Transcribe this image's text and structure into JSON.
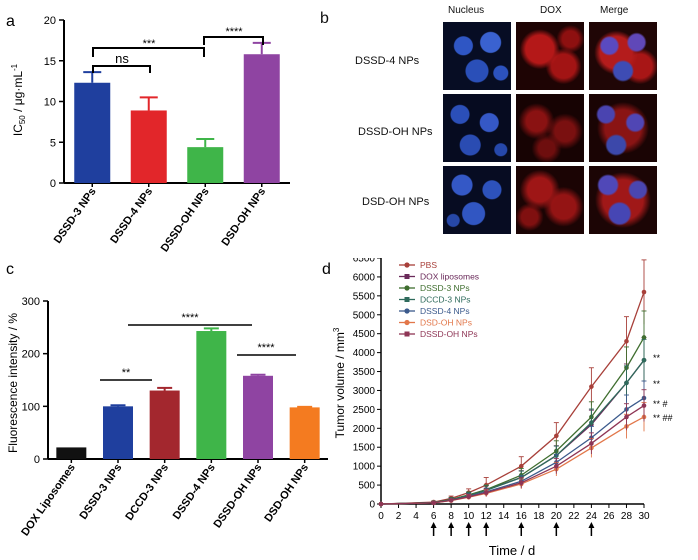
{
  "panels": {
    "a": {
      "letter": "a",
      "ylabel": "IC50 / μg·mL-1",
      "ylabel_main": "IC",
      "ylabel_sub": "50",
      "ylabel_rest": " / μg·mL",
      "ylabel_sup": "-1",
      "sig": [
        {
          "text": "ns"
        },
        {
          "text": "***"
        },
        {
          "text": "****"
        }
      ]
    },
    "b": {
      "letter": "b",
      "columns": [
        "Nucleus",
        "DOX",
        "Merge"
      ],
      "rows": [
        "DSSD-4 NPs",
        "DSSD-OH NPs",
        "DSD-OH NPs"
      ]
    },
    "c": {
      "letter": "c",
      "ylabel": "Fluorescence intensity / %",
      "sig": [
        {
          "text": "****"
        },
        {
          "text": "**"
        },
        {
          "text": "****"
        }
      ]
    },
    "d": {
      "letter": "d",
      "ylabel": "Tumor volume / mm3",
      "ylabel_main": "Tumor volume / mm",
      "ylabel_sup": "3",
      "xlabel": "Time / d",
      "right_marks": [
        {
          "text": "**"
        },
        {
          "text": "**"
        },
        {
          "text": "**  #"
        },
        {
          "text": "**  ##"
        }
      ]
    }
  },
  "colors": {
    "blue": "#1f3f9e",
    "red": "#e2262a",
    "green": "#3fb549",
    "purple": "#8f44a2",
    "darkred": "#a3272e",
    "orange": "#f47b20",
    "black": "#111111"
  },
  "chart_data": [
    {
      "type": "bar",
      "title": "",
      "ylabel": "IC50 / μg·mL-1",
      "ylim": [
        0,
        20
      ],
      "yticks": [
        0,
        5,
        10,
        15,
        20
      ],
      "categories": [
        "DSSD-3 NPs",
        "DSSD-4 NPs",
        "DSSD-OH NPs",
        "DSD-OH NPs"
      ],
      "values": [
        12.3,
        8.9,
        4.4,
        15.8
      ],
      "errors": [
        1.3,
        1.6,
        1.0,
        1.4
      ],
      "colors": [
        "#1f3f9e",
        "#e2262a",
        "#3fb549",
        "#8f44a2"
      ]
    },
    {
      "type": "bar",
      "title": "",
      "ylabel": "Fluorescence intensity / %",
      "ylim": [
        0,
        300
      ],
      "yticks": [
        0,
        100,
        200,
        300
      ],
      "categories": [
        "DOX Liposomes",
        "DSSD-3 NPs",
        "DCCD-3 NPs",
        "DSSD-4 NPs",
        "DSSD-OH NPs",
        "DSD-OH NPs"
      ],
      "values": [
        22,
        100,
        130,
        243,
        158,
        98
      ],
      "errors": [
        0,
        2,
        5,
        5,
        2,
        1
      ],
      "colors": [
        "#111111",
        "#1f3f9e",
        "#a3272e",
        "#3fb549",
        "#8f44a2",
        "#f47b20"
      ]
    },
    {
      "type": "line",
      "title": "",
      "xlabel": "Time / d",
      "ylabel": "Tumor volume / mm3",
      "xlim": [
        0,
        30
      ],
      "ylim": [
        0,
        6500
      ],
      "xticks": [
        0,
        2,
        4,
        6,
        8,
        10,
        12,
        14,
        16,
        18,
        20,
        22,
        24,
        26,
        28,
        30
      ],
      "yticks": [
        0,
        500,
        1000,
        1500,
        2000,
        2500,
        3000,
        3500,
        4000,
        4500,
        5000,
        5500,
        6000,
        6500
      ],
      "x": [
        0,
        6,
        8,
        10,
        12,
        16,
        20,
        24,
        28,
        30
      ],
      "dosing_days": [
        6,
        8,
        10,
        12,
        16,
        20,
        24
      ],
      "legend_position": "top-left",
      "series": [
        {
          "name": "PBS",
          "color": "#a8403a",
          "values": [
            0,
            50,
            150,
            300,
            500,
            1000,
            1800,
            3100,
            4300,
            5600
          ],
          "errors": [
            0,
            30,
            60,
            100,
            200,
            250,
            350,
            500,
            650,
            850
          ]
        },
        {
          "name": "DOX liposomes",
          "color": "#6a2a5a",
          "values": [
            0,
            40,
            120,
            230,
            370,
            700,
            1280,
            2100,
            3200,
            3800
          ],
          "errors": [
            0,
            30,
            50,
            80,
            120,
            180,
            260,
            380,
            500,
            600
          ]
        },
        {
          "name": "DSSD-3 NPs",
          "color": "#3f6e2f",
          "values": [
            0,
            40,
            120,
            240,
            380,
            760,
            1400,
            2300,
            3600,
            4400
          ],
          "errors": [
            0,
            30,
            50,
            80,
            120,
            180,
            270,
            400,
            550,
            700
          ]
        },
        {
          "name": "DCCD-3 NPs",
          "color": "#2f6b5c",
          "values": [
            0,
            35,
            110,
            220,
            360,
            700,
            1280,
            2150,
            3200,
            3800
          ],
          "errors": [
            0,
            30,
            50,
            80,
            120,
            170,
            250,
            360,
            450,
            550
          ]
        },
        {
          "name": "DSSD-4 NPs",
          "color": "#3b5a8c",
          "values": [
            0,
            30,
            100,
            200,
            320,
            600,
            1100,
            1750,
            2500,
            2800
          ],
          "errors": [
            0,
            25,
            40,
            70,
            100,
            150,
            210,
            300,
            380,
            450
          ]
        },
        {
          "name": "DSD-OH NPs",
          "color": "#e2774a",
          "values": [
            0,
            30,
            90,
            180,
            280,
            530,
            920,
            1480,
            2050,
            2300
          ],
          "errors": [
            0,
            25,
            40,
            60,
            90,
            130,
            180,
            250,
            320,
            380
          ]
        },
        {
          "name": "DSSD-OH NPs",
          "color": "#8e3555",
          "values": [
            0,
            30,
            95,
            190,
            300,
            560,
            1000,
            1600,
            2300,
            2600
          ],
          "errors": [
            0,
            25,
            40,
            65,
            95,
            140,
            200,
            280,
            350,
            420
          ]
        }
      ]
    }
  ]
}
